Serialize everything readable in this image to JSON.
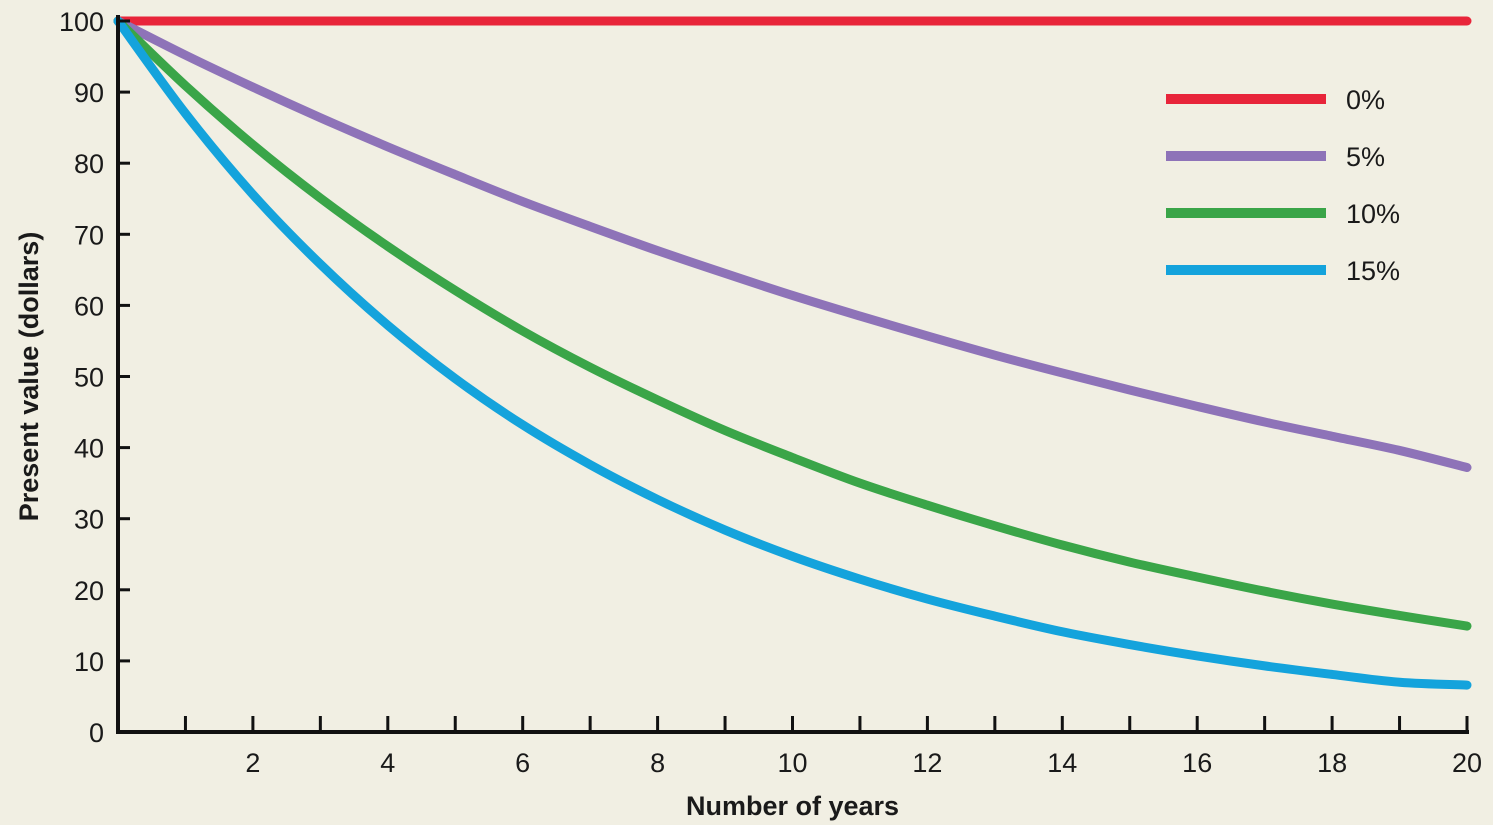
{
  "chart_data": {
    "type": "line",
    "title": "",
    "xlabel": "Number of years",
    "ylabel": "Present value (dollars)",
    "xlim": [
      0,
      20
    ],
    "ylim": [
      0,
      100
    ],
    "x_ticks": [
      2,
      4,
      6,
      8,
      10,
      12,
      14,
      16,
      18,
      20
    ],
    "x_minor_ticks": [
      1,
      3,
      5,
      7,
      9,
      11,
      13,
      15,
      17,
      19
    ],
    "y_ticks": [
      0,
      10,
      20,
      30,
      40,
      50,
      60,
      70,
      80,
      90,
      100
    ],
    "grid": false,
    "legend_position": "top-right",
    "x": [
      0,
      1,
      2,
      3,
      4,
      5,
      6,
      7,
      8,
      9,
      10,
      11,
      12,
      13,
      14,
      15,
      16,
      17,
      18,
      19,
      20
    ],
    "series": [
      {
        "name": "0%",
        "color": "#e8253a",
        "values": [
          100,
          100,
          100,
          100,
          100,
          100,
          100,
          100,
          100,
          100,
          100,
          100,
          100,
          100,
          100,
          100,
          100,
          100,
          100,
          100,
          100
        ]
      },
      {
        "name": "5%",
        "color": "#8e73b8",
        "values": [
          100,
          95.2,
          90.7,
          86.4,
          82.3,
          78.4,
          74.6,
          71.1,
          67.7,
          64.5,
          61.4,
          58.5,
          55.7,
          53.0,
          50.5,
          48.1,
          45.8,
          43.6,
          41.6,
          39.6,
          37.2
        ]
      },
      {
        "name": "10%",
        "color": "#3aa548",
        "values": [
          100,
          90.9,
          82.6,
          75.1,
          68.3,
          62.1,
          56.4,
          51.3,
          46.7,
          42.4,
          38.6,
          35.0,
          31.9,
          29.0,
          26.3,
          23.9,
          21.8,
          19.8,
          18.0,
          16.4,
          14.9
        ]
      },
      {
        "name": "15%",
        "color": "#14a3dc",
        "values": [
          100,
          87.0,
          75.6,
          65.8,
          57.2,
          49.7,
          43.2,
          37.6,
          32.7,
          28.4,
          24.7,
          21.5,
          18.7,
          16.3,
          14.1,
          12.3,
          10.7,
          9.3,
          8.1,
          7.0,
          6.6
        ]
      }
    ]
  }
}
